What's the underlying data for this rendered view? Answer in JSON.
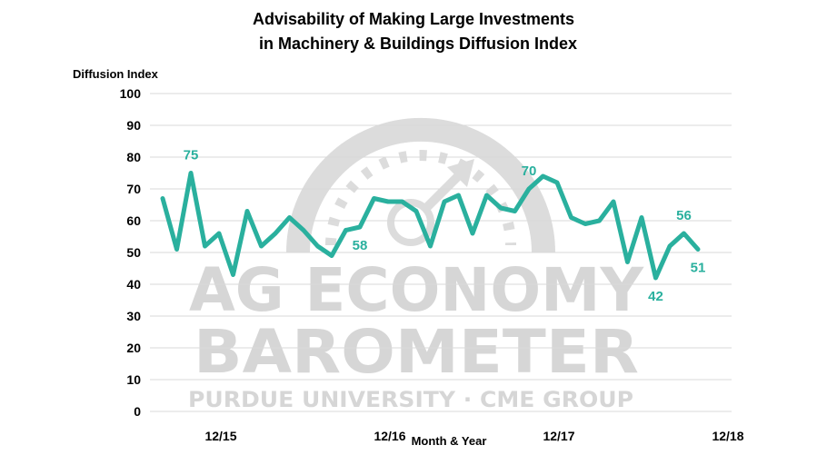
{
  "chart_data": {
    "type": "line",
    "title_line1": "Advisability of Making Large Investments",
    "title_line2": "in Machinery & Buildings Diffusion Index",
    "ylabel": "Diffusion Index",
    "xlabel": "Month & Year",
    "ylim": [
      0,
      100
    ],
    "y_ticks": [
      "0",
      "10",
      "20",
      "30",
      "40",
      "50",
      "60",
      "70",
      "80",
      "90",
      "100"
    ],
    "x_tick_labels": [
      {
        "label": "12/15",
        "index": 2
      },
      {
        "label": "12/16",
        "index": 14
      },
      {
        "label": "12/17",
        "index": 26
      },
      {
        "label": "12/18",
        "index": 38
      }
    ],
    "grid": true,
    "series_color": "#2ab09e",
    "values": [
      67,
      51,
      75,
      52,
      56,
      43,
      63,
      52,
      56,
      61,
      57,
      52,
      49,
      57,
      58,
      67,
      66,
      66,
      63,
      52,
      66,
      68,
      56,
      68,
      64,
      63,
      70,
      74,
      72,
      61,
      59,
      60,
      66,
      47,
      61,
      42,
      52,
      56,
      51
    ],
    "data_labels": [
      {
        "index": 2,
        "text": "75",
        "pos": "above"
      },
      {
        "index": 14,
        "text": "58",
        "pos": "below"
      },
      {
        "index": 26,
        "text": "70",
        "pos": "above"
      },
      {
        "index": 35,
        "text": "42",
        "pos": "below"
      },
      {
        "index": 37,
        "text": "56",
        "pos": "above"
      },
      {
        "index": 38,
        "text": "51",
        "pos": "below"
      }
    ]
  },
  "watermark": {
    "line1": "AG ECONOMY",
    "line2": "BAROMETER",
    "line3": "PURDUE UNIVERSITY · CME GROUP"
  }
}
